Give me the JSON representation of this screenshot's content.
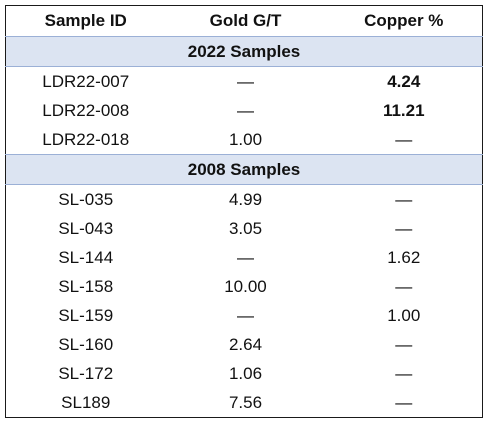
{
  "table": {
    "columns": [
      "Sample ID",
      "Gold G/T",
      "Copper %"
    ],
    "groups": [
      {
        "label": "2022 Samples",
        "rows": [
          {
            "id": "LDR22-007",
            "gold": "—",
            "copper": "4.24",
            "copper_bold": true
          },
          {
            "id": "LDR22-008",
            "gold": "—",
            "copper": "11.21",
            "copper_bold": true
          },
          {
            "id": "LDR22-018",
            "gold": "1.00",
            "copper": "—",
            "copper_bold": false
          }
        ]
      },
      {
        "label": "2008 Samples",
        "rows": [
          {
            "id": "SL-035",
            "gold": "4.99",
            "copper": "—",
            "copper_bold": false
          },
          {
            "id": "SL-043",
            "gold": "3.05",
            "copper": "—",
            "copper_bold": false
          },
          {
            "id": "SL-144",
            "gold": "—",
            "copper": "1.62",
            "copper_bold": false
          },
          {
            "id": "SL-158",
            "gold": "10.00",
            "copper": "—",
            "copper_bold": false
          },
          {
            "id": "SL-159",
            "gold": "—",
            "copper": "1.00",
            "copper_bold": false
          },
          {
            "id": "SL-160",
            "gold": "2.64",
            "copper": "—",
            "copper_bold": false
          },
          {
            "id": "SL-172",
            "gold": "1.06",
            "copper": "—",
            "copper_bold": false
          },
          {
            "id": "SL189",
            "gold": "7.56",
            "copper": "—",
            "copper_bold": false
          }
        ]
      }
    ]
  },
  "colors": {
    "group_band": "#dce4f2",
    "border": "#1a1a1a",
    "divider": "#9bb0d6"
  }
}
